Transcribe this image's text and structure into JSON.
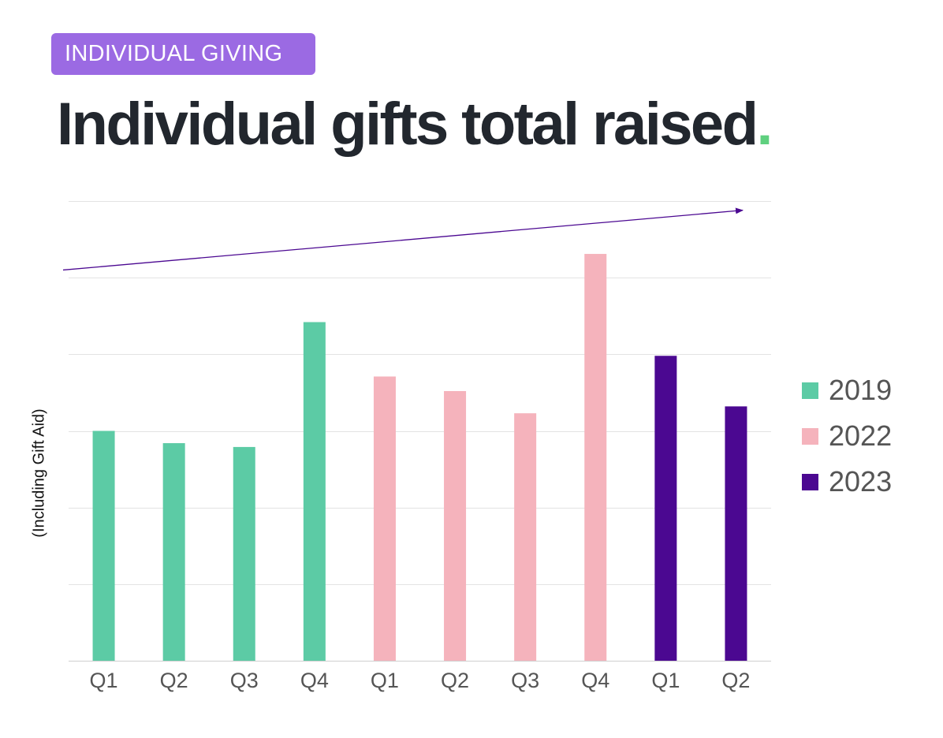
{
  "header": {
    "badge": "INDIVIDUAL GIVING",
    "title": "Individual gifts total raised",
    "title_dot": "."
  },
  "colors": {
    "badge_bg": "#9b6ae3",
    "2019": "#5ccba5",
    "2022": "#f5b3bc",
    "2023": "#4b0891",
    "trend_arrow": "#4b0891",
    "dot": "#5fd07f"
  },
  "chart_data": {
    "type": "bar",
    "ylabel": "(Including Gift Aid)",
    "ylim": [
      0,
      6
    ],
    "grid": true,
    "y_ticks_labeled": false,
    "legend_placement": "right",
    "categories": [
      "Q1",
      "Q2",
      "Q3",
      "Q4",
      "Q1",
      "Q2",
      "Q3",
      "Q4",
      "Q1",
      "Q2"
    ],
    "bars": [
      {
        "series": "2019",
        "label": "Q1",
        "value": 3.0
      },
      {
        "series": "2019",
        "label": "Q2",
        "value": 2.84
      },
      {
        "series": "2019",
        "label": "Q3",
        "value": 2.79
      },
      {
        "series": "2019",
        "label": "Q4",
        "value": 4.42
      },
      {
        "series": "2022",
        "label": "Q1",
        "value": 3.71
      },
      {
        "series": "2022",
        "label": "Q2",
        "value": 3.52
      },
      {
        "series": "2022",
        "label": "Q3",
        "value": 3.23
      },
      {
        "series": "2022",
        "label": "Q4",
        "value": 5.31
      },
      {
        "series": "2023",
        "label": "Q1",
        "value": 3.98
      },
      {
        "series": "2023",
        "label": "Q2",
        "value": 3.32
      }
    ],
    "series": [
      {
        "name": "2019"
      },
      {
        "name": "2022"
      },
      {
        "name": "2023"
      }
    ],
    "trend_arrow": {
      "from_value": 5.1,
      "to_value": 5.88
    }
  }
}
